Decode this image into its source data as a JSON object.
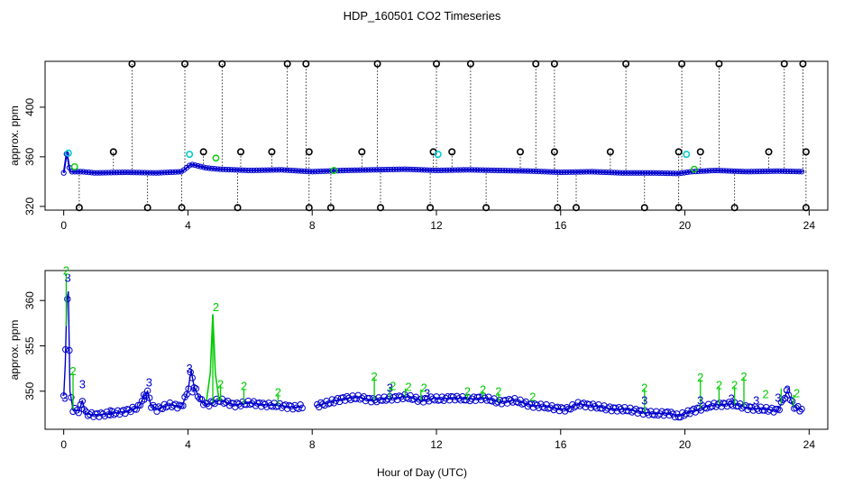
{
  "chart_data": {
    "type": "scatter",
    "title": "HDP_160501  CO2 Timeseries",
    "xlabel": "Hour of Day (UTC)",
    "colors": {
      "black": "#000000",
      "blue": "#0000cc",
      "cyan": "#00cccc",
      "green": "#00cc00"
    },
    "panels": [
      {
        "name": "full-range",
        "ylabel": "approx. ppm",
        "xlim": [
          -0.6,
          24.6
        ],
        "ylim": [
          317,
          437
        ],
        "xticks": [
          0,
          4,
          8,
          12,
          16,
          20,
          24
        ],
        "yticks": [
          320,
          360,
          400
        ],
        "baseline": [
          [
            0,
            347
          ],
          [
            0.1,
            364
          ],
          [
            0.2,
            348
          ],
          [
            0.6,
            348
          ],
          [
            1,
            347
          ],
          [
            2,
            347.5
          ],
          [
            3,
            347
          ],
          [
            3.8,
            348
          ],
          [
            4.1,
            354
          ],
          [
            4.6,
            351
          ],
          [
            5,
            350
          ],
          [
            6,
            349
          ],
          [
            7,
            349.5
          ],
          [
            8,
            348
          ],
          [
            9,
            349
          ],
          [
            10,
            349.5
          ],
          [
            11,
            350
          ],
          [
            12,
            349
          ],
          [
            13,
            349.5
          ],
          [
            14,
            349
          ],
          [
            15,
            348.5
          ],
          [
            16,
            347.5
          ],
          [
            17,
            348
          ],
          [
            18,
            347
          ],
          [
            19,
            347
          ],
          [
            19.8,
            346.5
          ],
          [
            20.2,
            348
          ],
          [
            21,
            349
          ],
          [
            22,
            348
          ],
          [
            23,
            348.5
          ],
          [
            23.8,
            348
          ]
        ],
        "spikes_high": [
          2.2,
          3.9,
          5.1,
          7.2,
          7.8,
          10.1,
          12,
          13.1,
          15.2,
          15.8,
          18.1,
          19.9,
          21.1,
          23.2,
          23.8
        ],
        "spikes_mid": [
          1.6,
          4.5,
          5.7,
          6.7,
          7.9,
          9.6,
          11.9,
          12.5,
          14.7,
          15.8,
          17.6,
          19.8,
          20.5,
          22.7,
          23.9
        ],
        "spikes_low": [
          0.5,
          2.7,
          3.8,
          5.6,
          7.9,
          8.6,
          10.2,
          11.8,
          13.6,
          15.9,
          16.5,
          18.7,
          19.8,
          21.6,
          23.9
        ],
        "high_value": 435,
        "mid_value": 364,
        "low_value": 319,
        "cyan_points": [
          [
            0.15,
            363
          ],
          [
            4.05,
            362
          ],
          [
            12.05,
            362
          ],
          [
            20.05,
            362
          ]
        ],
        "green_points": [
          [
            0.35,
            352
          ],
          [
            4.9,
            359
          ],
          [
            8.7,
            349
          ],
          [
            20.3,
            350
          ]
        ]
      },
      {
        "name": "zoom",
        "ylabel": "approx. ppm",
        "xlim": [
          -0.6,
          24.6
        ],
        "ylim": [
          345.8,
          363.3
        ],
        "xticks": [
          0,
          4,
          8,
          12,
          16,
          20,
          24
        ],
        "yticks": [
          350,
          355,
          360
        ],
        "blue_trace": [
          [
            0,
            349.5
          ],
          [
            0.05,
            353
          ],
          [
            0.1,
            360
          ],
          [
            0.15,
            361
          ],
          [
            0.2,
            350
          ],
          [
            0.3,
            348
          ],
          [
            0.5,
            347.8
          ],
          [
            0.6,
            349
          ],
          [
            0.7,
            347.5
          ],
          [
            1,
            347.4
          ],
          [
            1.5,
            347.5
          ],
          [
            2,
            347.8
          ],
          [
            2.4,
            348.2
          ],
          [
            2.6,
            349.5
          ],
          [
            2.7,
            350
          ],
          [
            2.8,
            348.5
          ],
          [
            3,
            348
          ],
          [
            3.4,
            348.5
          ],
          [
            3.8,
            348.3
          ],
          [
            4,
            350
          ],
          [
            4.1,
            352.3
          ],
          [
            4.2,
            350.5
          ],
          [
            4.4,
            349
          ],
          [
            4.6,
            348.5
          ],
          [
            5,
            349
          ],
          [
            5.5,
            348.5
          ],
          [
            6,
            348.7
          ],
          [
            6.5,
            348.5
          ],
          [
            7,
            348.4
          ],
          [
            7.5,
            348.2
          ],
          [
            7.7,
            348.3
          ]
        ],
        "blue_trace_2": [
          [
            8.1,
            348.4
          ],
          [
            8.5,
            348.7
          ],
          [
            9,
            349.2
          ],
          [
            9.5,
            349.3
          ],
          [
            10,
            349
          ],
          [
            10.5,
            349.2
          ],
          [
            11,
            349.4
          ],
          [
            11.5,
            349
          ],
          [
            11.9,
            349.2
          ],
          [
            12.1,
            349.1
          ],
          [
            12.5,
            349.3
          ],
          [
            13,
            349.1
          ],
          [
            13.5,
            349.3
          ],
          [
            14,
            348.8
          ],
          [
            14.5,
            349
          ],
          [
            15,
            348.5
          ],
          [
            15.5,
            348.3
          ],
          [
            15.9,
            348.1
          ],
          [
            16.2,
            348
          ],
          [
            16.6,
            348.6
          ],
          [
            17,
            348.4
          ],
          [
            17.5,
            348.1
          ],
          [
            18,
            348
          ],
          [
            18.5,
            347.8
          ],
          [
            19,
            347.5
          ],
          [
            19.5,
            347.6
          ],
          [
            19.8,
            347.2
          ],
          [
            20.2,
            347.8
          ],
          [
            20.6,
            348.2
          ],
          [
            21,
            348.5
          ],
          [
            21.5,
            348.6
          ],
          [
            22,
            348.2
          ],
          [
            22.5,
            348
          ],
          [
            23,
            347.9
          ],
          [
            23.3,
            350
          ],
          [
            23.5,
            348.3
          ],
          [
            23.8,
            347.9
          ]
        ],
        "green_trace": [
          [
            4.6,
            349
          ],
          [
            4.72,
            352
          ],
          [
            4.8,
            358.5
          ],
          [
            4.88,
            352
          ],
          [
            5,
            349
          ]
        ],
        "green_spikes": [
          [
            0.08,
            363
          ],
          [
            0.3,
            352
          ],
          [
            4.8,
            358.3
          ],
          [
            5.05,
            350.7
          ],
          [
            5.8,
            350.3
          ],
          [
            6.9,
            349.7
          ],
          [
            10,
            351.5
          ],
          [
            10.5,
            350.5
          ],
          [
            11,
            350.3
          ],
          [
            11.5,
            350.2
          ],
          [
            13,
            349.7
          ],
          [
            13.5,
            350
          ],
          [
            14,
            349.8
          ],
          [
            18.7,
            350.3
          ],
          [
            20.5,
            351.3
          ],
          [
            21.1,
            350.5
          ],
          [
            21.6,
            350.5
          ],
          [
            21.9,
            351.5
          ],
          [
            23.1,
            350.3
          ],
          [
            23.5,
            349.6
          ]
        ],
        "blue_labels": [
          [
            0.04,
            349.3
          ],
          [
            0.13,
            362.5
          ],
          [
            0.6,
            350.8
          ],
          [
            1.5,
            347.8
          ],
          [
            2.6,
            349.2
          ],
          [
            2.75,
            351
          ],
          [
            4.05,
            352.5
          ],
          [
            4.15,
            350
          ],
          [
            10.5,
            350.4
          ],
          [
            11.7,
            349.8
          ],
          [
            18.7,
            349
          ],
          [
            20.5,
            349
          ],
          [
            21.5,
            349.2
          ],
          [
            22.3,
            349
          ],
          [
            23,
            349.3
          ],
          [
            23.3,
            350.2
          ]
        ],
        "green_labels": [
          [
            0.08,
            363.5
          ],
          [
            0.3,
            352.2
          ],
          [
            4.9,
            359.3
          ],
          [
            5.05,
            350.8
          ],
          [
            5.8,
            350.6
          ],
          [
            6.9,
            349.9
          ],
          [
            10,
            351.6
          ],
          [
            10.6,
            350.6
          ],
          [
            11.1,
            350.5
          ],
          [
            11.6,
            350.4
          ],
          [
            13,
            350
          ],
          [
            13.5,
            350.2
          ],
          [
            14,
            350
          ],
          [
            15.1,
            349.4
          ],
          [
            18.7,
            350.4
          ],
          [
            20.5,
            351.5
          ],
          [
            21.1,
            350.7
          ],
          [
            21.6,
            350.7
          ],
          [
            21.9,
            351.6
          ],
          [
            22.6,
            349.7
          ],
          [
            23.6,
            349.8
          ]
        ],
        "open_circles": {
          "from": 0,
          "to": 24,
          "step": 0.06,
          "color": "#0000cc"
        }
      }
    ]
  }
}
